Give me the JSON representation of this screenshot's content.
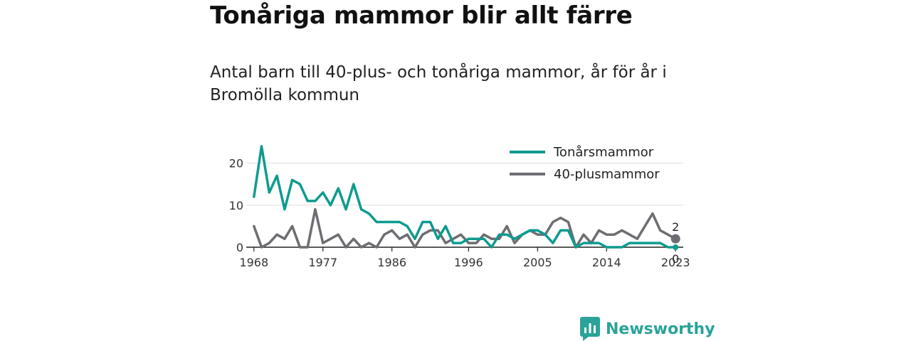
{
  "header": {
    "title": "Tonåriga mammor blir allt färre",
    "subtitle": "Antal barn till 40-plus- och tonåriga mammor, år för år i Bromölla kommun"
  },
  "branding": {
    "logo_text": "Newsworthy",
    "logo_icon": "bar-chart-speech-icon",
    "color": "#2aa39a"
  },
  "chart_data": {
    "type": "line",
    "title": "",
    "xlabel": "",
    "ylabel": "",
    "x": [
      1968,
      1969,
      1970,
      1971,
      1972,
      1973,
      1974,
      1975,
      1976,
      1977,
      1978,
      1979,
      1980,
      1981,
      1982,
      1983,
      1984,
      1985,
      1986,
      1987,
      1988,
      1989,
      1990,
      1991,
      1992,
      1993,
      1994,
      1995,
      1996,
      1997,
      1998,
      1999,
      2000,
      2001,
      2002,
      2003,
      2004,
      2005,
      2006,
      2007,
      2008,
      2009,
      2010,
      2011,
      2012,
      2013,
      2014,
      2015,
      2016,
      2017,
      2018,
      2019,
      2020,
      2021,
      2022,
      2023
    ],
    "xticks": [
      "1968",
      "1977",
      "1986",
      "1996",
      "2005",
      "2014",
      "2023"
    ],
    "yticks": [
      "0",
      "10",
      "20"
    ],
    "ylim": [
      0,
      25
    ],
    "grid": true,
    "legend_position": "top-right",
    "series": [
      {
        "name": "Tonårsmammor",
        "color": "#0e9b8f",
        "values": [
          12,
          24,
          13,
          17,
          9,
          16,
          15,
          11,
          11,
          13,
          10,
          14,
          9,
          15,
          9,
          8,
          6,
          6,
          6,
          6,
          5,
          2,
          6,
          6,
          2,
          5,
          1,
          1,
          2,
          2,
          2,
          0,
          3,
          3,
          2,
          3,
          4,
          4,
          3,
          1,
          4,
          4,
          0,
          1,
          1,
          1,
          0,
          0,
          0,
          1,
          1,
          1,
          1,
          1,
          0,
          0
        ],
        "end_label": "0"
      },
      {
        "name": "40-plusmammor",
        "color": "#6d6d72",
        "values": [
          5,
          0,
          1,
          3,
          2,
          5,
          0,
          0,
          9,
          1,
          2,
          3,
          0,
          2,
          0,
          1,
          0,
          3,
          4,
          2,
          3,
          0,
          3,
          4,
          4,
          1,
          2,
          3,
          1,
          1,
          3,
          2,
          2,
          5,
          1,
          3,
          4,
          3,
          3,
          6,
          7,
          6,
          0,
          3,
          1,
          4,
          3,
          3,
          4,
          3,
          2,
          5,
          8,
          4,
          3,
          2
        ],
        "end_label": "2"
      }
    ]
  }
}
